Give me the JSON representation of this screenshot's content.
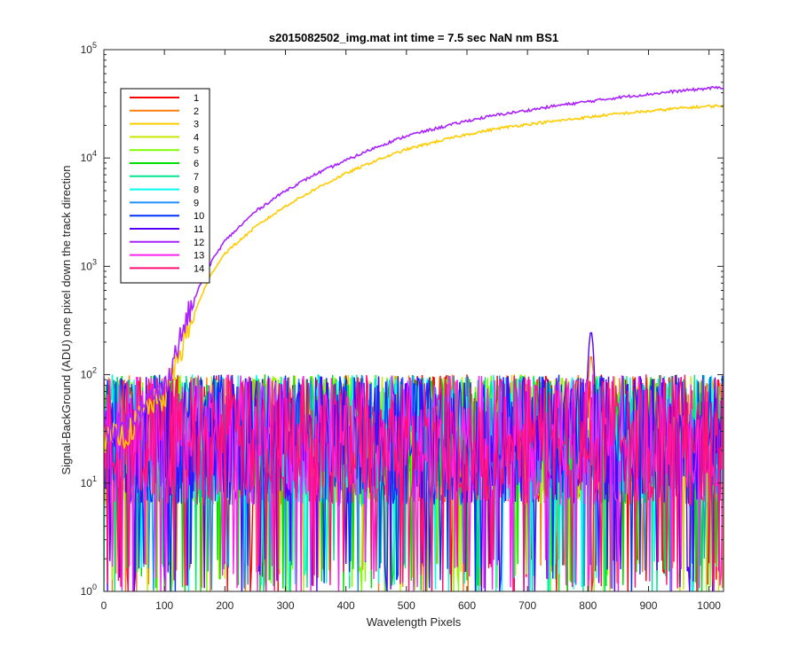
{
  "chart_data": {
    "type": "line",
    "title": "s2015082502_img.mat int time = 7.5 sec  NaN nm BS1",
    "xlabel": "Wavelength Pixels",
    "ylabel": "Signal-BackGround (ADU) one pixel down the track direction",
    "xlim": [
      0,
      1024
    ],
    "ylim": [
      1,
      100000
    ],
    "yscale": "log",
    "grid": false,
    "legend_position": "top-left",
    "x_ticks": [
      "0",
      "100",
      "200",
      "300",
      "400",
      "500",
      "600",
      "700",
      "800",
      "900",
      "1000"
    ],
    "y_ticks": [
      {
        "base": "10",
        "exp": "0"
      },
      {
        "base": "10",
        "exp": "1"
      },
      {
        "base": "10",
        "exp": "2"
      },
      {
        "base": "10",
        "exp": "3"
      },
      {
        "base": "10",
        "exp": "4"
      },
      {
        "base": "10",
        "exp": "5"
      }
    ],
    "signal_series": [
      {
        "name": "3",
        "color": "#ffcc00",
        "points": [
          [
            0,
            25
          ],
          [
            40,
            28
          ],
          [
            60,
            42
          ],
          [
            80,
            55
          ],
          [
            100,
            60
          ],
          [
            120,
            130
          ],
          [
            140,
            260
          ],
          [
            160,
            520
          ],
          [
            180,
            900
          ],
          [
            200,
            1320
          ],
          [
            250,
            2300
          ],
          [
            300,
            3600
          ],
          [
            350,
            5200
          ],
          [
            400,
            7200
          ],
          [
            450,
            9500
          ],
          [
            500,
            12000
          ],
          [
            550,
            14200
          ],
          [
            600,
            16500
          ],
          [
            650,
            18700
          ],
          [
            700,
            20500
          ],
          [
            750,
            22000
          ],
          [
            800,
            23800
          ],
          [
            850,
            25600
          ],
          [
            900,
            27000
          ],
          [
            950,
            28800
          ],
          [
            1000,
            30000
          ],
          [
            1024,
            30500
          ]
        ]
      },
      {
        "name": "12",
        "color": "#aa22ff",
        "points": [
          [
            0,
            30
          ],
          [
            40,
            35
          ],
          [
            60,
            52
          ],
          [
            80,
            62
          ],
          [
            100,
            75
          ],
          [
            120,
            170
          ],
          [
            140,
            360
          ],
          [
            160,
            700
          ],
          [
            180,
            1160
          ],
          [
            200,
            1720
          ],
          [
            250,
            3200
          ],
          [
            300,
            5000
          ],
          [
            350,
            7100
          ],
          [
            400,
            9500
          ],
          [
            450,
            12600
          ],
          [
            500,
            16000
          ],
          [
            550,
            18800
          ],
          [
            600,
            22000
          ],
          [
            650,
            25000
          ],
          [
            700,
            27500
          ],
          [
            750,
            30500
          ],
          [
            800,
            33200
          ],
          [
            850,
            36200
          ],
          [
            900,
            38800
          ],
          [
            950,
            41500
          ],
          [
            1000,
            44000
          ],
          [
            1024,
            45000
          ]
        ]
      }
    ],
    "series": [
      {
        "name": "1",
        "color": "#ff0000"
      },
      {
        "name": "2",
        "color": "#ff7f0e"
      },
      {
        "name": "3",
        "color": "#ffcc00"
      },
      {
        "name": "4",
        "color": "#c8e600"
      },
      {
        "name": "5",
        "color": "#7fff00"
      },
      {
        "name": "6",
        "color": "#00e000"
      },
      {
        "name": "7",
        "color": "#00e68a"
      },
      {
        "name": "8",
        "color": "#00ffee"
      },
      {
        "name": "9",
        "color": "#1e90ff"
      },
      {
        "name": "10",
        "color": "#0033ff"
      },
      {
        "name": "11",
        "color": "#5500ff"
      },
      {
        "name": "12",
        "color": "#aa22ff"
      },
      {
        "name": "13",
        "color": "#ff22ee"
      },
      {
        "name": "14",
        "color": "#ff1177"
      }
    ],
    "noise_floor": {
      "typical_range": [
        2,
        80
      ],
      "median": 25
    },
    "peak_feature": {
      "x": 805,
      "y": 250,
      "series": "11"
    }
  }
}
